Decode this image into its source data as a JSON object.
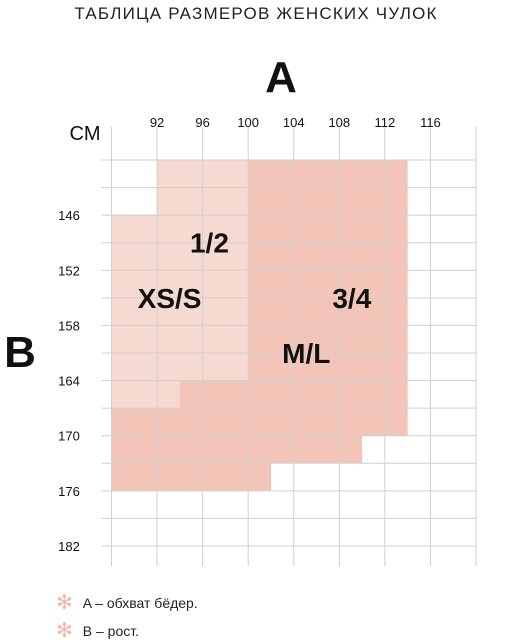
{
  "title": "ТАБЛИЦА РАЗМЕРОВ ЖЕНСКИХ ЧУЛОК",
  "legend": {
    "items": [
      {
        "marker_icon": "asterisk-icon",
        "text": "A – обхват бёдер."
      },
      {
        "marker_icon": "asterisk-icon",
        "text": "B – рост."
      }
    ],
    "marker_color": "#f1b8ab"
  },
  "chart_data": {
    "type": "heatmap",
    "title": "ТАБЛИЦА РАЗМЕРОВ ЖЕНСКИХ ЧУЛОК",
    "x_axis": {
      "name": "A",
      "unit": "CM",
      "ticks": [
        92,
        96,
        100,
        104,
        108,
        112,
        116
      ],
      "range": [
        88,
        120
      ]
    },
    "y_axis": {
      "name": "B",
      "ticks": [
        146,
        152,
        158,
        164,
        170,
        176,
        182
      ],
      "range": [
        140,
        182
      ]
    },
    "grid": true,
    "colors": {
      "small": "#f6d9d1",
      "large": "#f3c4b8",
      "grid": "#cfcfcf"
    },
    "regions": [
      {
        "size": "1/2",
        "label_secondary": "XS/S",
        "color_key": "small",
        "polygon": [
          [
            92,
            140
          ],
          [
            100,
            140
          ],
          [
            100,
            164
          ],
          [
            94,
            164
          ],
          [
            94,
            167
          ],
          [
            88,
            167
          ],
          [
            88,
            146
          ],
          [
            92,
            146
          ]
        ]
      },
      {
        "size": "3/4",
        "label_secondary": "M/L",
        "color_key": "large",
        "polygon": [
          [
            100,
            140
          ],
          [
            114,
            140
          ],
          [
            114,
            170
          ],
          [
            110,
            170
          ],
          [
            110,
            173
          ],
          [
            102,
            173
          ],
          [
            102,
            176
          ],
          [
            88,
            176
          ],
          [
            88,
            167
          ],
          [
            94,
            167
          ],
          [
            94,
            164
          ],
          [
            100,
            164
          ]
        ]
      }
    ],
    "labels": [
      {
        "text": "1/2",
        "x": 96.6,
        "y": 149
      },
      {
        "text": "XS/S",
        "x": 93.1,
        "y": 155
      },
      {
        "text": "3/4",
        "x": 109.1,
        "y": 155
      },
      {
        "text": "M/L",
        "x": 105.1,
        "y": 161
      }
    ]
  }
}
